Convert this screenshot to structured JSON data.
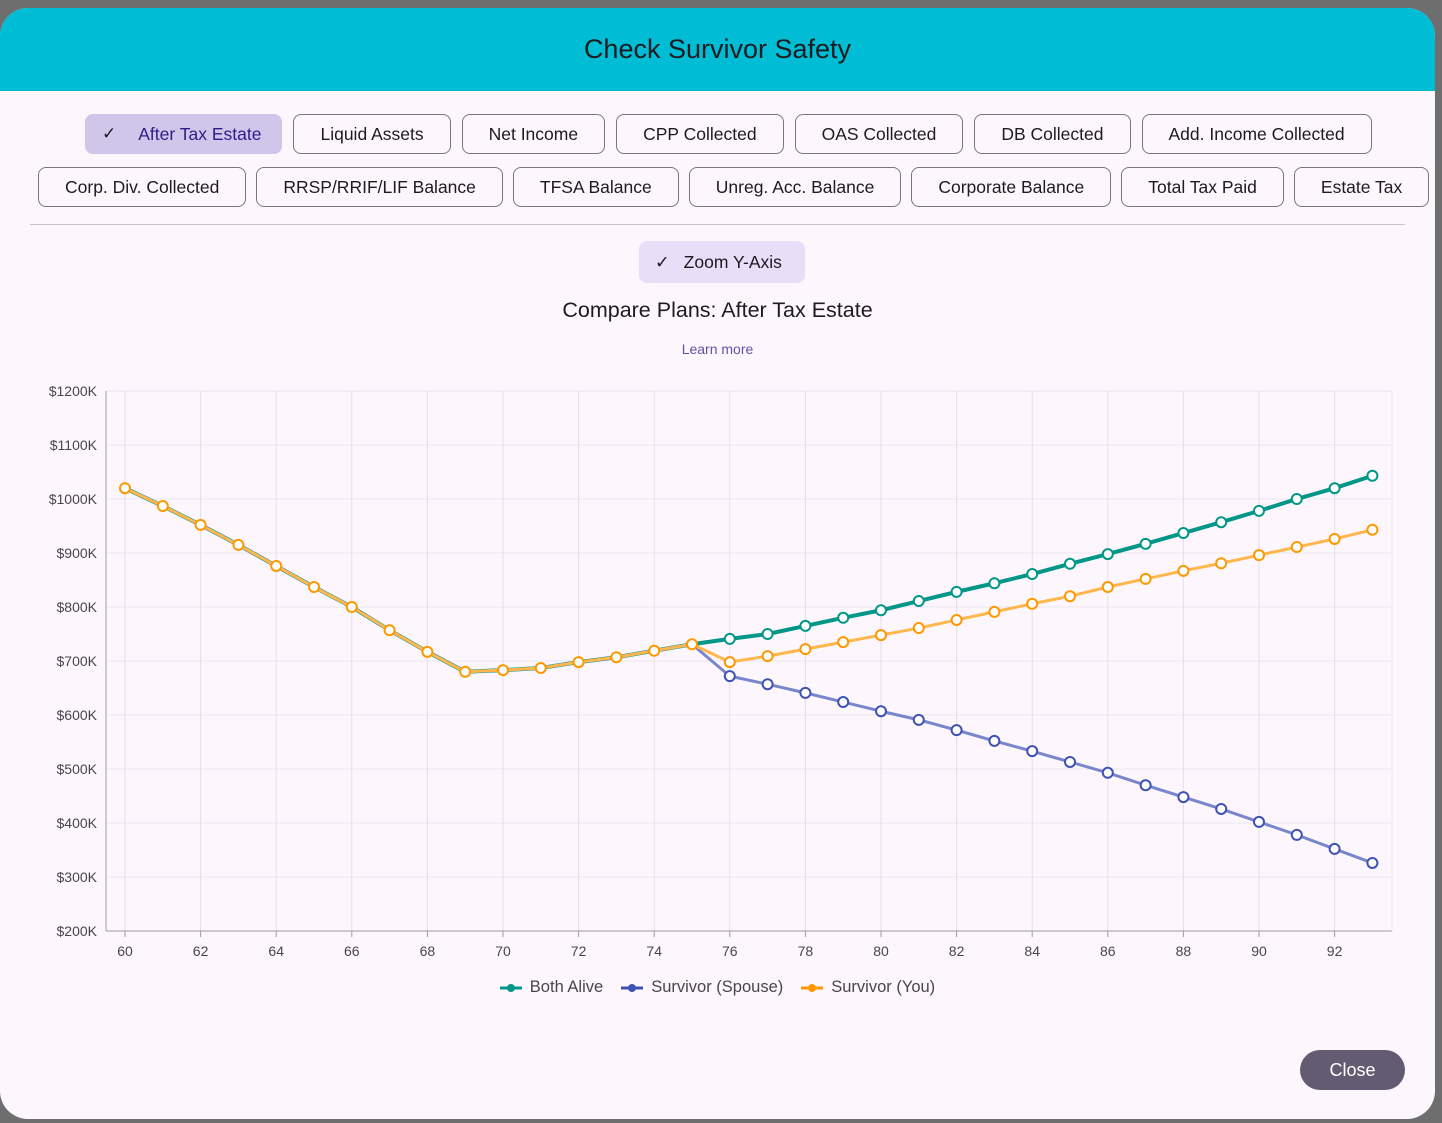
{
  "dialog": {
    "title": "Check Survivor Safety",
    "close_label": "Close"
  },
  "metrics_row1": [
    "After Tax Estate",
    "Liquid Assets",
    "Net Income",
    "CPP Collected",
    "OAS Collected",
    "DB Collected",
    "Add. Income Collected"
  ],
  "metrics_row2": [
    "Corp. Div. Collected",
    "RRSP/RRIF/LIF Balance",
    "TFSA Balance",
    "Unreg. Acc. Balance",
    "Corporate Balance",
    "Total Tax Paid",
    "Estate Tax"
  ],
  "selected_metric": "After Tax Estate",
  "zoom_toggle": {
    "label": "Zoom Y-Axis",
    "checked": true
  },
  "learn_more": "Learn more",
  "chart_data": {
    "type": "line",
    "title": "Compare Plans: After Tax Estate",
    "xlabel": "",
    "ylabel": "",
    "x": [
      60,
      61,
      62,
      63,
      64,
      65,
      66,
      67,
      68,
      69,
      70,
      71,
      72,
      73,
      74,
      75,
      76,
      77,
      78,
      79,
      80,
      81,
      82,
      83,
      84,
      85,
      86,
      87,
      88,
      89,
      90,
      91,
      92,
      93
    ],
    "xticks": [
      "60",
      "62",
      "64",
      "66",
      "68",
      "70",
      "72",
      "74",
      "76",
      "78",
      "80",
      "82",
      "84",
      "86",
      "88",
      "90",
      "92"
    ],
    "yticks": [
      "$200K",
      "$300K",
      "$400K",
      "$500K",
      "$600K",
      "$700K",
      "$800K",
      "$900K",
      "$1000K",
      "$1100K",
      "$1200K"
    ],
    "ylim": [
      200,
      1200
    ],
    "yunit": "$K",
    "grid": true,
    "legend": "bottom",
    "series": [
      {
        "name": "Both Alive",
        "color": "#009688",
        "values": [
          1020,
          987,
          952,
          915,
          876,
          837,
          800,
          757,
          717,
          680,
          683,
          687,
          698,
          707,
          719,
          731,
          741,
          750,
          765,
          780,
          794,
          811,
          828,
          844,
          861,
          880,
          898,
          917,
          937,
          957,
          978,
          1000,
          1020,
          1043
        ]
      },
      {
        "name": "Survivor (Spouse)",
        "color": "#3f51b5",
        "values": [
          1020,
          987,
          952,
          915,
          876,
          837,
          800,
          757,
          717,
          680,
          683,
          687,
          698,
          707,
          719,
          731,
          672,
          657,
          641,
          624,
          607,
          591,
          572,
          552,
          533,
          513,
          493,
          470,
          448,
          426,
          402,
          378,
          352,
          326
        ]
      },
      {
        "name": "Survivor (You)",
        "color": "#ff9800",
        "values": [
          1020,
          987,
          952,
          915,
          876,
          837,
          800,
          757,
          717,
          680,
          683,
          687,
          698,
          707,
          719,
          731,
          698,
          709,
          722,
          735,
          748,
          761,
          776,
          791,
          806,
          820,
          837,
          852,
          867,
          881,
          896,
          911,
          926,
          943
        ]
      }
    ]
  }
}
